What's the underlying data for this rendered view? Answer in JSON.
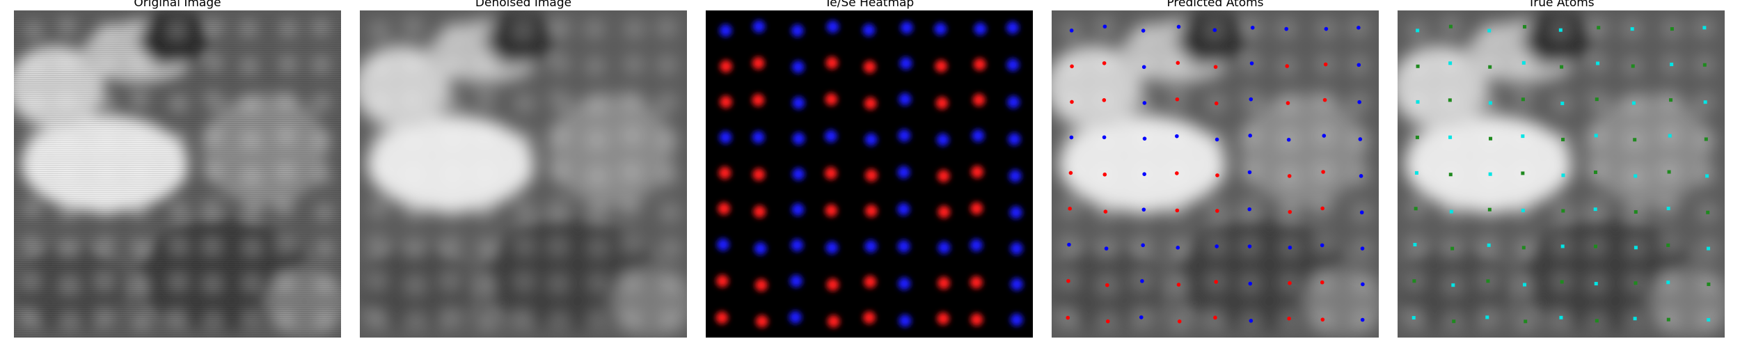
{
  "panels": [
    {
      "title": "Original Image"
    },
    {
      "title": "Denoised Image"
    },
    {
      "title": "Te/Se Heatmap"
    },
    {
      "title": "Predicted Atoms"
    },
    {
      "title": "True Atoms"
    }
  ],
  "colors": {
    "heatmap_red": "#ff1a1a",
    "heatmap_blue": "#1a1aff",
    "predicted_red": "#ff0000",
    "predicted_blue": "#0000ff",
    "true_green": "#1f8a1f",
    "true_cyan": "#00e5e5"
  }
}
